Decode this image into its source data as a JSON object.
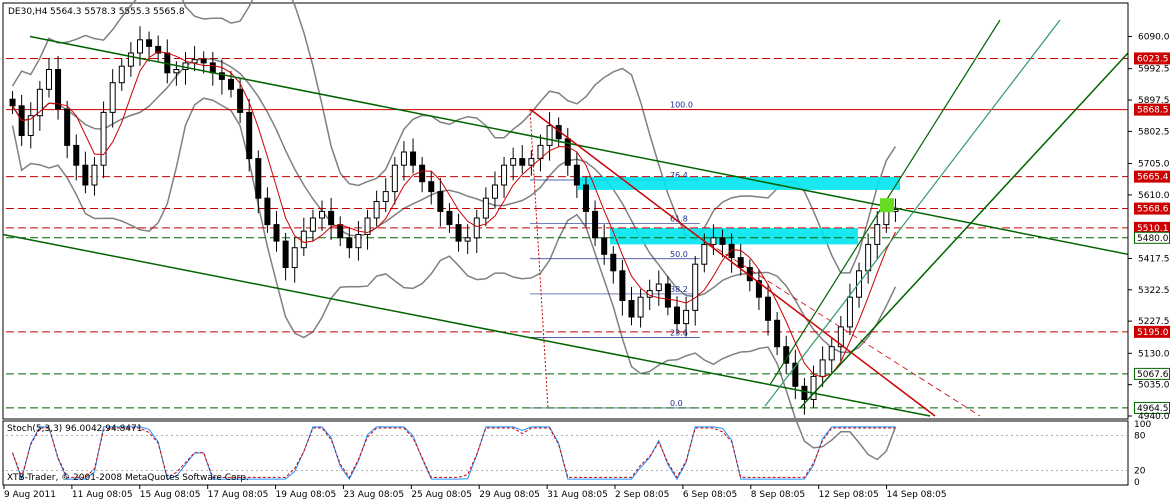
{
  "header": {
    "symbol": "DE30,H4",
    "ohlc": "5564.3 5578.3 5555.3 5565.8"
  },
  "indicator": {
    "label": "Stoch(5,3,3) 96.0042 94.8471"
  },
  "copyright": "XTB-Trader, © 2001-2008 MetaQuotes Software Corp.",
  "colors": {
    "up_candle": "#ffffff",
    "down_candle": "#000000",
    "resistance_line": "#cc0000",
    "support_line": "#006600",
    "channel": "#006400",
    "bollinger": "#808080",
    "moving_average": "#cc0000",
    "fibo_zone": "#00e5ee",
    "stoch_main": "#1e90ff",
    "stoch_signal": "#cc0000",
    "highlight": "#66dd22"
  },
  "chart_data": {
    "type": "candlestick",
    "price_axis": {
      "ticks": [
        "6090.0",
        "5992.5",
        "5897.5",
        "5802.5",
        "5705.0",
        "5610.0",
        "5417.5",
        "5322.5",
        "5227.5",
        "5130.0",
        "5035.0",
        "4940.0"
      ],
      "range": [
        4940.0,
        6140.0
      ]
    },
    "time_axis": {
      "labels": [
        "9 Aug 2011",
        "11 Aug 08:05",
        "15 Aug 08:05",
        "17 Aug 08:05",
        "19 Aug 08:05",
        "23 Aug 08:05",
        "25 Aug 08:05",
        "29 Aug 08:05",
        "31 Aug 08:05",
        "2 Sep 08:05",
        "6 Sep 08:05",
        "8 Sep 08:05",
        "12 Sep 08:05",
        "14 Sep 08:05"
      ]
    },
    "horizontal_levels": [
      {
        "value": "6023.5",
        "style": "dashed",
        "color": "red"
      },
      {
        "value": "5868.5",
        "style": "solid",
        "color": "red"
      },
      {
        "value": "5665.4",
        "style": "dashed",
        "color": "red"
      },
      {
        "value": "5568.6",
        "style": "dashed",
        "color": "red"
      },
      {
        "value": "5510.1",
        "style": "dashed",
        "color": "red"
      },
      {
        "value": "5480.0",
        "style": "dashed",
        "color": "green"
      },
      {
        "value": "5195.0",
        "style": "dashed",
        "color": "red"
      },
      {
        "value": "5067.6",
        "style": "dashed",
        "color": "green"
      },
      {
        "value": "4964.5",
        "style": "dashed",
        "color": "green"
      }
    ],
    "fibonacci_levels": [
      "100.0",
      "76.4",
      "61.8",
      "50.0",
      "38.2",
      "23.6",
      "0.0"
    ],
    "stochastic_axis": [
      "100",
      "80",
      "20",
      "0"
    ],
    "candles_close": [
      5880,
      5790,
      5850,
      5930,
      5990,
      5870,
      5760,
      5700,
      5640,
      5700,
      5860,
      5950,
      6000,
      6040,
      6080,
      6060,
      6040,
      5980,
      5990,
      6010,
      6020,
      6010,
      5980,
      5960,
      5930,
      5860,
      5720,
      5600,
      5520,
      5470,
      5390,
      5450,
      5500,
      5540,
      5560,
      5520,
      5480,
      5450,
      5490,
      5540,
      5590,
      5620,
      5700,
      5740,
      5700,
      5650,
      5620,
      5560,
      5520,
      5470,
      5480,
      5540,
      5600,
      5640,
      5700,
      5720,
      5700,
      5720,
      5760,
      5820,
      5780,
      5700,
      5640,
      5560,
      5480,
      5430,
      5380,
      5290,
      5240,
      5300,
      5320,
      5340,
      5270,
      5220,
      5260,
      5400,
      5460,
      5480,
      5460,
      5420,
      5390,
      5350,
      5300,
      5230,
      5150,
      5100,
      5030,
      4990,
      5060,
      5110,
      5150,
      5210,
      5300,
      5380,
      5460,
      5520,
      5560,
      5566
    ]
  }
}
